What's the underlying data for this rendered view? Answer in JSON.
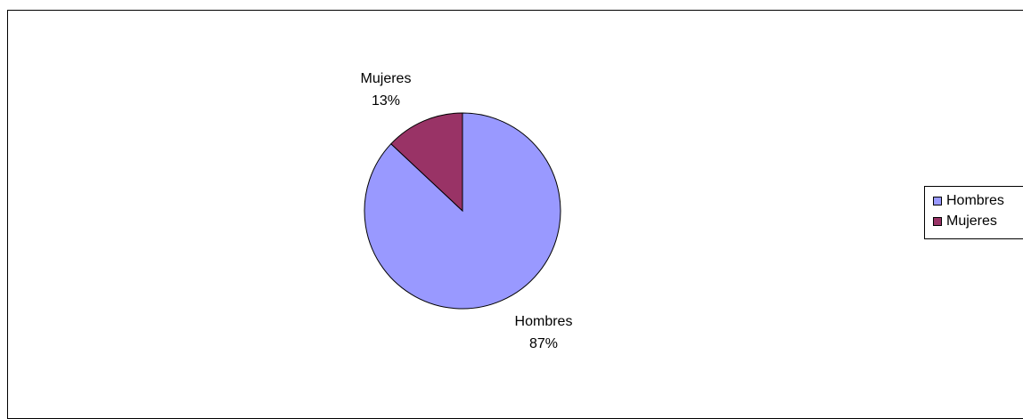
{
  "chart_data": {
    "type": "pie",
    "title": "",
    "slices": [
      {
        "label": "Hombres",
        "value": 87,
        "percent_label": "87%",
        "color": "#9999ff"
      },
      {
        "label": "Mujeres",
        "value": 13,
        "percent_label": "13%",
        "color": "#993366"
      }
    ],
    "legend": {
      "placement": "right",
      "entries": [
        "Hombres",
        "Mujeres"
      ]
    }
  }
}
